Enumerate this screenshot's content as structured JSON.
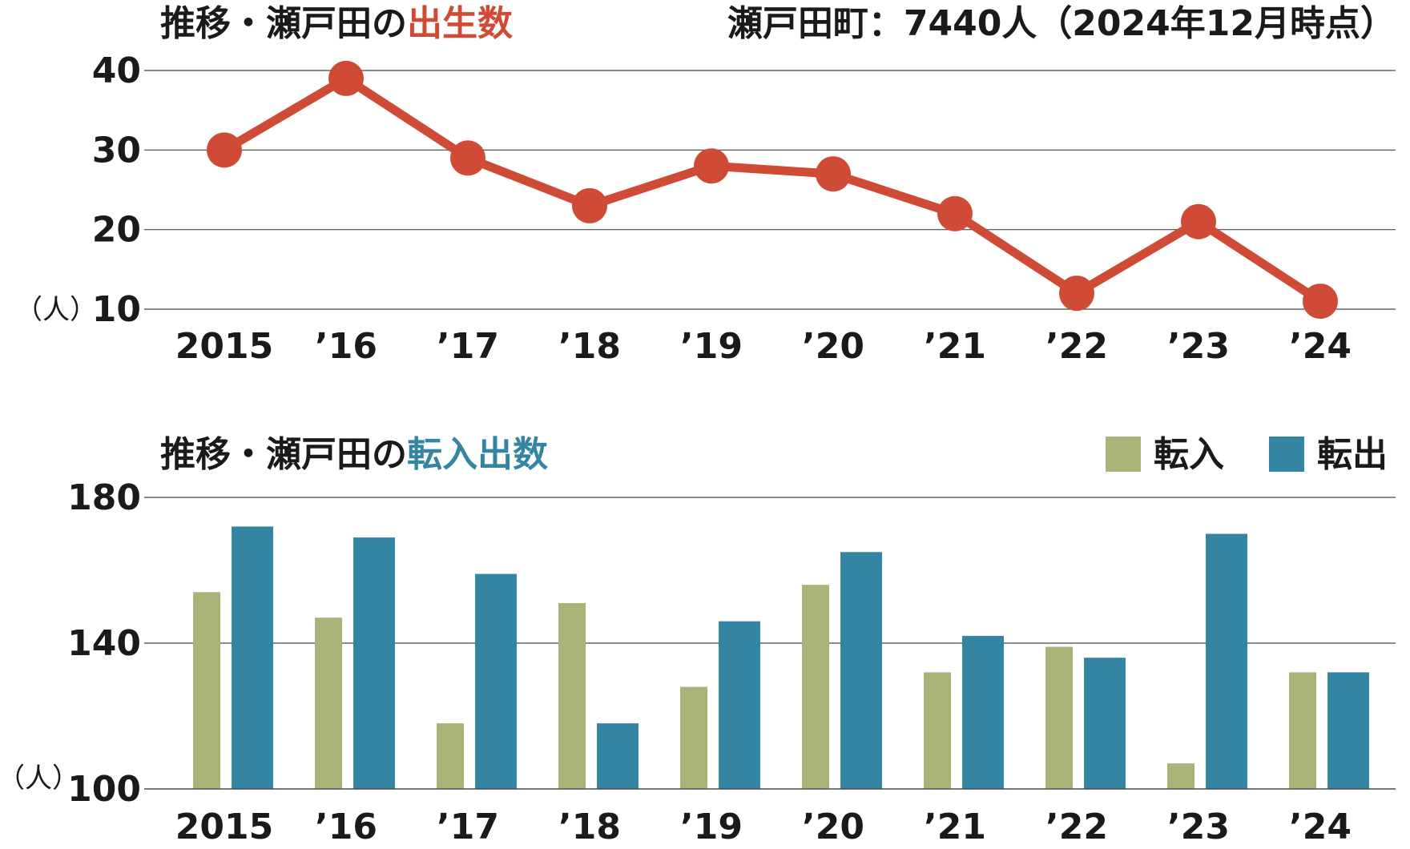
{
  "chart_data": [
    {
      "type": "line",
      "title_prefix": "推移・瀬戸田の",
      "title_highlight": "出生数",
      "subtitle": "瀬戸田町：7440人（2024年12月時点）",
      "ylabel": "（人）",
      "categories": [
        "2015",
        "’16",
        "’17",
        "’18",
        "’19",
        "’20",
        "’21",
        "’22",
        "’23",
        "’24"
      ],
      "ylim": [
        10,
        40
      ],
      "yticks": [
        40,
        30,
        20,
        10
      ],
      "series": [
        {
          "values": [
            30,
            39,
            29,
            23,
            28,
            27,
            22,
            12,
            21,
            11
          ],
          "color": "#cf4b36"
        }
      ],
      "grid": true,
      "accent_color": "#cf4b36"
    },
    {
      "type": "bar",
      "title_prefix": "推移・瀬戸田の",
      "title_highlight": "転入出数",
      "ylabel": "（人）",
      "categories": [
        "2015",
        "’16",
        "’17",
        "’18",
        "’19",
        "’20",
        "’21",
        "’22",
        "’23",
        "’24"
      ],
      "ylim": [
        100,
        180
      ],
      "yticks": [
        180,
        140,
        100
      ],
      "series": [
        {
          "name": "転入",
          "values": [
            154,
            147,
            118,
            151,
            128,
            156,
            132,
            139,
            107,
            132
          ],
          "color": "#a8b478"
        },
        {
          "name": "転出",
          "values": [
            172,
            169,
            159,
            118,
            146,
            165,
            142,
            136,
            170,
            132
          ],
          "color": "#3385a3"
        }
      ],
      "legend": "top-right",
      "grid": true,
      "accent_color": "#3385a3"
    }
  ]
}
